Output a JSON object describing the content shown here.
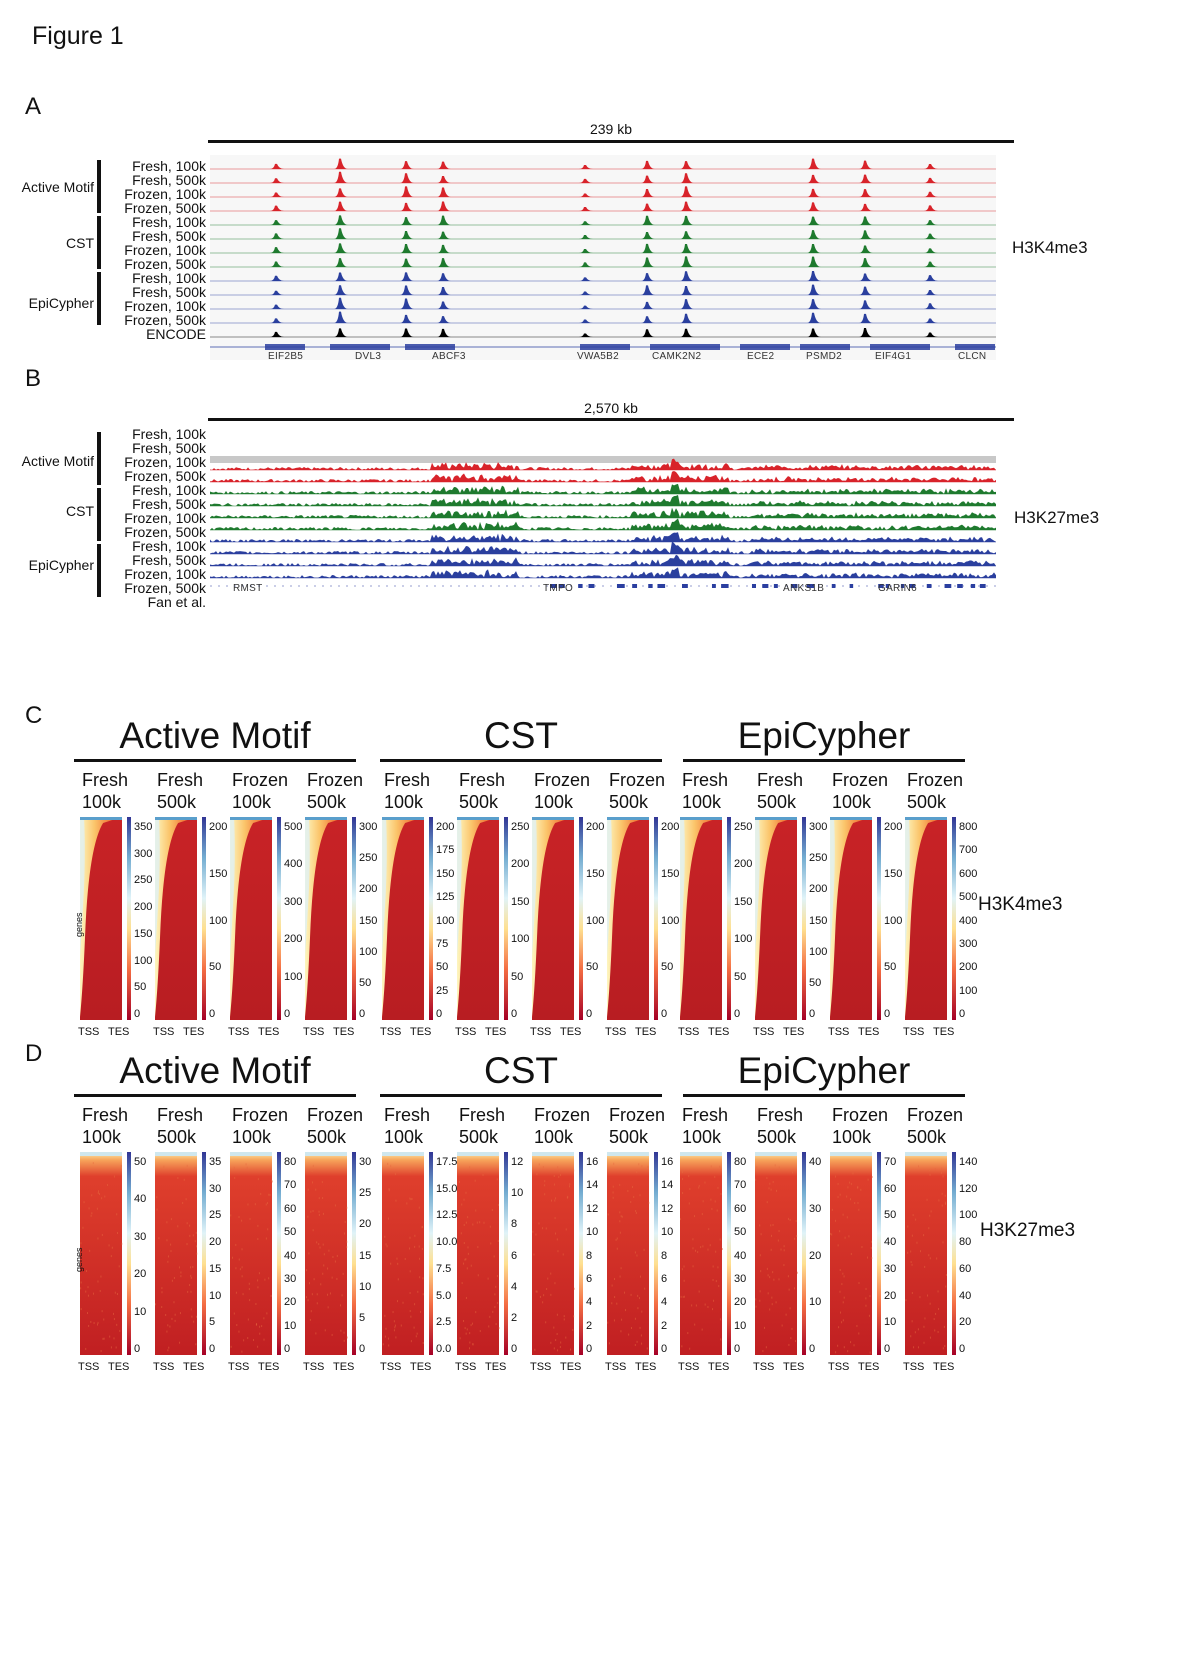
{
  "figure_title": "Figure 1",
  "panel_letters": [
    "A",
    "B",
    "C",
    "D"
  ],
  "panel_a": {
    "scale_label": "239 kb",
    "groups": [
      "Active Motif",
      "CST",
      "EpiCypher"
    ],
    "track_labels": [
      "Fresh, 100k",
      "Fresh, 500k",
      "Frozen, 100k",
      "Frozen, 500k",
      "Fresh, 100k",
      "Fresh, 500k",
      "Frozen, 100k",
      "Frozen, 500k",
      "Fresh, 100k",
      "Fresh, 500k",
      "Frozen, 100k",
      "Frozen, 500k",
      "ENCODE"
    ],
    "mark": "H3K4me3",
    "genes": [
      "EIF2B5",
      "DVL3",
      "ABCF3",
      "VWA5B2",
      "CAMK2N2",
      "ECE2",
      "PSMD2",
      "EIF4G1",
      "CLCN"
    ],
    "colors": {
      "active_motif": "#d8232a",
      "cst": "#1e7a2e",
      "epicypher": "#2a3f9e",
      "encode": "#000000",
      "gene": "#2b3fa0"
    }
  },
  "panel_b": {
    "scale_label": "2,570 kb",
    "groups": [
      "Active Motif",
      "CST",
      "EpiCypher"
    ],
    "track_labels": [
      "Fresh, 100k",
      "Fresh, 500k",
      "Frozen, 100k",
      "Frozen, 500k",
      "Fresh, 100k",
      "Fresh, 500k",
      "Frozen, 100k",
      "Frozen, 500k",
      "Fresh, 100k",
      "Fresh, 500k",
      "Frozen, 100k",
      "Frozen, 500k",
      "Fan et al."
    ],
    "mark": "H3K27me3",
    "genes": [
      "RMST",
      "TMPO",
      "ANKS1B",
      "GARIN6"
    ]
  },
  "panel_c": {
    "groups": [
      "Active Motif",
      "CST",
      "EpiCypher"
    ],
    "columns": [
      {
        "l1": "Fresh",
        "l2": "100k",
        "ticks": [
          "350",
          "300",
          "250",
          "200",
          "150",
          "100",
          "50",
          "0"
        ]
      },
      {
        "l1": "Fresh",
        "l2": "500k",
        "ticks": [
          "200",
          "150",
          "100",
          "50",
          "0"
        ]
      },
      {
        "l1": "Frozen",
        "l2": "100k",
        "ticks": [
          "500",
          "400",
          "300",
          "200",
          "100",
          "0"
        ]
      },
      {
        "l1": "Frozen",
        "l2": "500k",
        "ticks": [
          "300",
          "250",
          "200",
          "150",
          "100",
          "50",
          "0"
        ]
      },
      {
        "l1": "Fresh",
        "l2": "100k",
        "ticks": [
          "200",
          "175",
          "150",
          "125",
          "100",
          "75",
          "50",
          "25",
          "0"
        ]
      },
      {
        "l1": "Fresh",
        "l2": "500k",
        "ticks": [
          "250",
          "200",
          "150",
          "100",
          "50",
          "0"
        ]
      },
      {
        "l1": "Frozen",
        "l2": "100k",
        "ticks": [
          "200",
          "150",
          "100",
          "50",
          "0"
        ]
      },
      {
        "l1": "Frozen",
        "l2": "500k",
        "ticks": [
          "200",
          "150",
          "100",
          "50",
          "0"
        ]
      },
      {
        "l1": "Fresh",
        "l2": "100k",
        "ticks": [
          "250",
          "200",
          "150",
          "100",
          "50",
          "0"
        ]
      },
      {
        "l1": "Fresh",
        "l2": "500k",
        "ticks": [
          "300",
          "250",
          "200",
          "150",
          "100",
          "50",
          "0"
        ]
      },
      {
        "l1": "Frozen",
        "l2": "100k",
        "ticks": [
          "200",
          "150",
          "100",
          "50",
          "0"
        ]
      },
      {
        "l1": "Frozen",
        "l2": "500k",
        "ticks": [
          "800",
          "700",
          "600",
          "500",
          "400",
          "300",
          "200",
          "100",
          "0"
        ]
      }
    ],
    "mark": "H3K4me3",
    "x_start": "TSS",
    "x_end": "TES",
    "y_label": "genes"
  },
  "panel_d": {
    "groups": [
      "Active Motif",
      "CST",
      "EpiCypher"
    ],
    "columns": [
      {
        "l1": "Fresh",
        "l2": "100k",
        "ticks": [
          "50",
          "40",
          "30",
          "20",
          "10",
          "0"
        ]
      },
      {
        "l1": "Fresh",
        "l2": "500k",
        "ticks": [
          "35",
          "30",
          "25",
          "20",
          "15",
          "10",
          "5",
          "0"
        ]
      },
      {
        "l1": "Frozen",
        "l2": "100k",
        "ticks": [
          "80",
          "70",
          "60",
          "50",
          "40",
          "30",
          "20",
          "10",
          "0"
        ]
      },
      {
        "l1": "Frozen",
        "l2": "500k",
        "ticks": [
          "30",
          "25",
          "20",
          "15",
          "10",
          "5",
          "0"
        ]
      },
      {
        "l1": "Fresh",
        "l2": "100k",
        "ticks": [
          "17.5",
          "15.0",
          "12.5",
          "10.0",
          "7.5",
          "5.0",
          "2.5",
          "0.0"
        ]
      },
      {
        "l1": "Fresh",
        "l2": "500k",
        "ticks": [
          "12",
          "10",
          "8",
          "6",
          "4",
          "2",
          "0"
        ]
      },
      {
        "l1": "Frozen",
        "l2": "100k",
        "ticks": [
          "16",
          "14",
          "12",
          "10",
          "8",
          "6",
          "4",
          "2",
          "0"
        ]
      },
      {
        "l1": "Frozen",
        "l2": "500k",
        "ticks": [
          "16",
          "14",
          "12",
          "10",
          "8",
          "6",
          "4",
          "2",
          "0"
        ]
      },
      {
        "l1": "Fresh",
        "l2": "100k",
        "ticks": [
          "80",
          "70",
          "60",
          "50",
          "40",
          "30",
          "20",
          "10",
          "0"
        ]
      },
      {
        "l1": "Fresh",
        "l2": "500k",
        "ticks": [
          "40",
          "30",
          "20",
          "10",
          "0"
        ]
      },
      {
        "l1": "Frozen",
        "l2": "100k",
        "ticks": [
          "70",
          "60",
          "50",
          "40",
          "30",
          "20",
          "10",
          "0"
        ]
      },
      {
        "l1": "Frozen",
        "l2": "500k",
        "ticks": [
          "140",
          "120",
          "100",
          "80",
          "60",
          "40",
          "20",
          "0"
        ]
      }
    ],
    "mark": "H3K27me3",
    "x_start": "TSS",
    "x_end": "TES",
    "y_label": "genes"
  }
}
